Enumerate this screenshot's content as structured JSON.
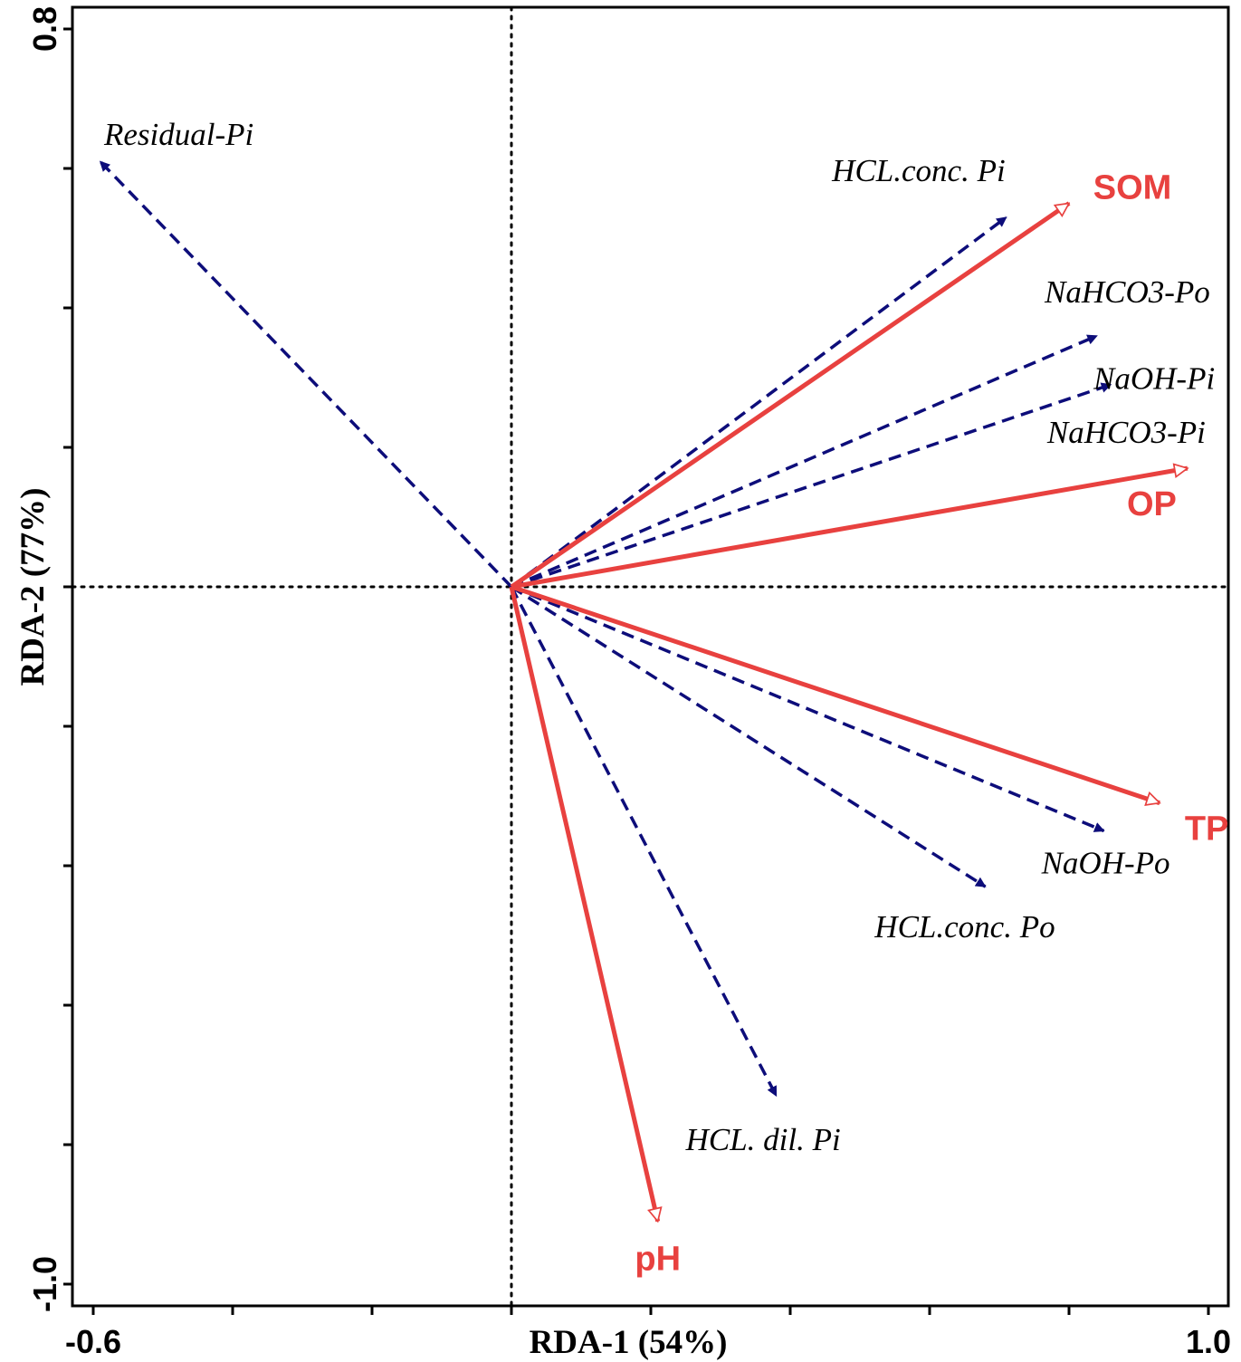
{
  "chart_data": {
    "type": "scatter",
    "subtype": "rda-biplot",
    "title": "",
    "xlabel": "RDA-1 (54%)",
    "ylabel": "RDA-2 (77%)",
    "xlim": [
      -0.6,
      1.0
    ],
    "ylim": [
      -1.0,
      0.8
    ],
    "x_tick_labels": [
      "-0.6",
      "1.0"
    ],
    "y_tick_labels": [
      "0.8",
      "-1.0"
    ],
    "x_minor_ticks": [
      -0.6,
      -0.4,
      -0.2,
      0.0,
      0.2,
      0.4,
      0.6,
      0.8,
      1.0
    ],
    "y_minor_ticks": [
      0.8,
      0.6,
      0.4,
      0.2,
      0.0,
      -0.2,
      -0.4,
      -0.6,
      -0.8,
      -1.0
    ],
    "origin_lines": "dotted",
    "grid": false,
    "colors": {
      "species": "#0d0d7a",
      "environment": "#e8413f",
      "axes": "#000000"
    },
    "series": [
      {
        "name": "",
        "role": "species",
        "style": "dashed-filled-arrow",
        "points": [
          {
            "label": "Residual-Pi",
            "x": -0.59,
            "y": 0.61
          },
          {
            "label": "HCL.conc. Pi",
            "x": 0.71,
            "y": 0.53
          },
          {
            "label": "NaHCO3-Po",
            "x": 0.84,
            "y": 0.36
          },
          {
            "label": "NaOH-Pi",
            "x": 0.86,
            "y": 0.29
          },
          {
            "label": "NaOH-Po",
            "x": 0.85,
            "y": -0.35
          },
          {
            "label": "HCL.conc. Po",
            "x": 0.68,
            "y": -0.43
          },
          {
            "label": "HCL. dil. Pi",
            "x": 0.38,
            "y": -0.73
          }
        ]
      },
      {
        "name": "",
        "role": "environment",
        "style": "solid-open-arrow",
        "points": [
          {
            "label": "SOM",
            "x": 0.8,
            "y": 0.55
          },
          {
            "label": "NaHCO3-Pi",
            "x": 0.97,
            "y": 0.17
          },
          {
            "label": "OP",
            "x": 0.97,
            "y": 0.17
          },
          {
            "label": "TP",
            "x": 0.93,
            "y": -0.31
          },
          {
            "label": "pH",
            "x": 0.21,
            "y": -0.91
          }
        ]
      }
    ]
  }
}
